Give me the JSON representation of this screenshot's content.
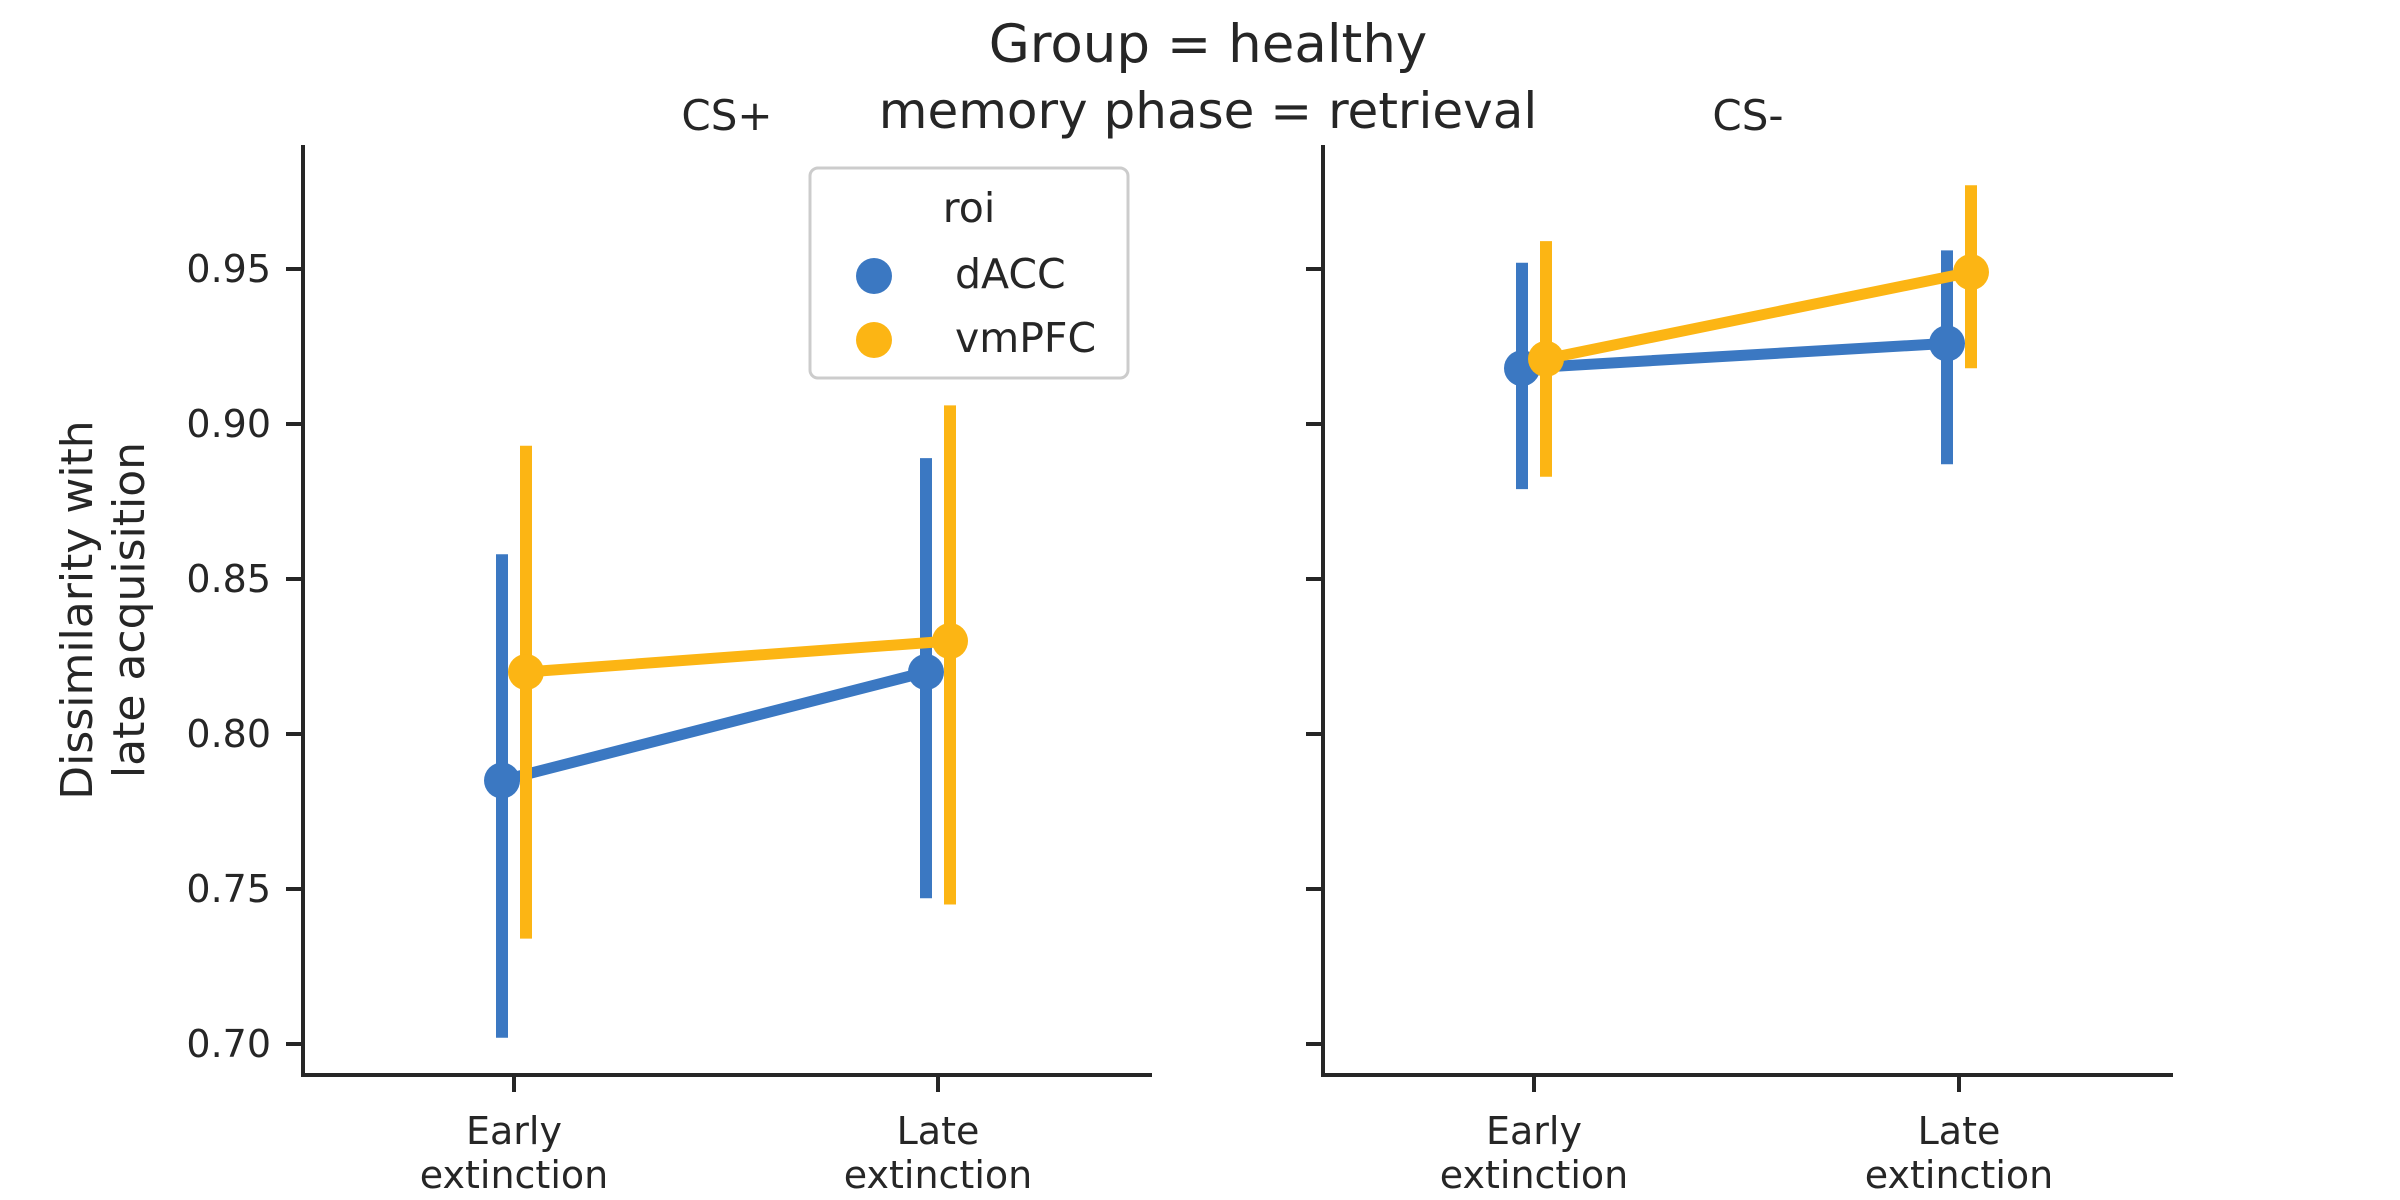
{
  "chart_data": {
    "type": "line",
    "title": "Group = healthy",
    "subtitle": "memory phase = retrieval",
    "ylabel_lines": [
      "Dissimilarity with",
      "late acquisition"
    ],
    "ylim": [
      0.69,
      0.99
    ],
    "yticks": [
      "0.70",
      "0.75",
      "0.80",
      "0.85",
      "0.90",
      "0.95"
    ],
    "ytick_values": [
      0.7,
      0.75,
      0.8,
      0.85,
      0.9,
      0.95
    ],
    "categories": [
      {
        "line1": "Early",
        "line2": "extinction"
      },
      {
        "line1": "Late",
        "line2": "extinction"
      }
    ],
    "legend": {
      "title": "roi",
      "position": "top-right of first panel"
    },
    "panels": [
      {
        "title": "CS+",
        "series": [
          {
            "name": "dACC",
            "color": "#3b78c2",
            "values": [
              0.785,
              0.82
            ],
            "ci_low": [
              0.702,
              0.747
            ],
            "ci_high": [
              0.858,
              0.889
            ]
          },
          {
            "name": "vmPFC",
            "color": "#fcb514",
            "values": [
              0.82,
              0.83
            ],
            "ci_low": [
              0.734,
              0.745
            ],
            "ci_high": [
              0.893,
              0.906
            ]
          }
        ]
      },
      {
        "title": "CS-",
        "series": [
          {
            "name": "dACC",
            "color": "#3b78c2",
            "values": [
              0.918,
              0.926
            ],
            "ci_low": [
              0.879,
              0.887
            ],
            "ci_high": [
              0.952,
              0.956
            ]
          },
          {
            "name": "vmPFC",
            "color": "#fcb514",
            "values": [
              0.921,
              0.949
            ],
            "ci_low": [
              0.883,
              0.918
            ],
            "ci_high": [
              0.959,
              0.977
            ]
          }
        ]
      }
    ]
  }
}
